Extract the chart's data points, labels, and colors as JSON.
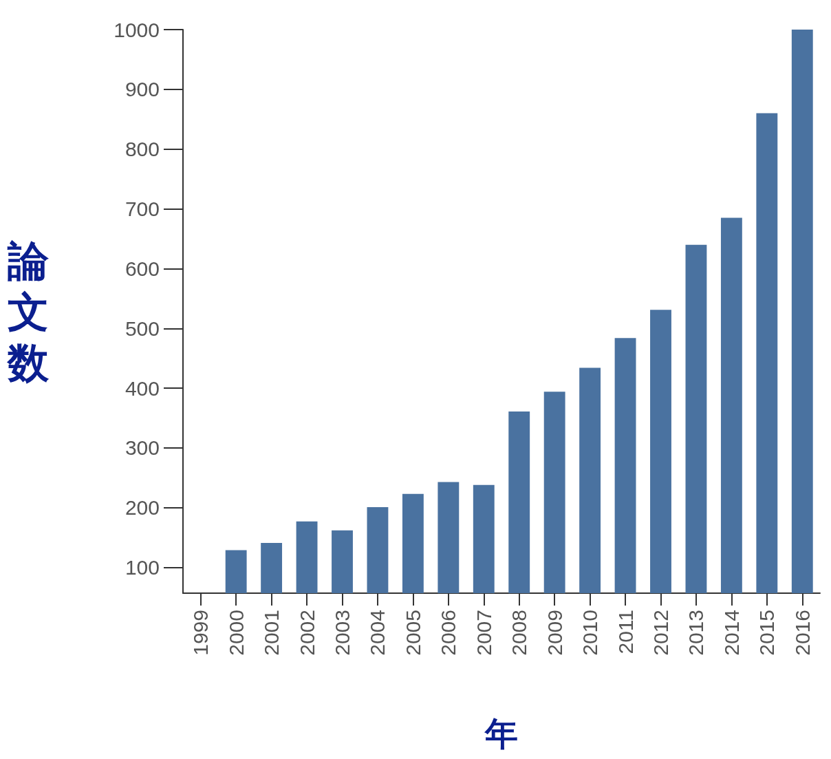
{
  "chart_data": {
    "type": "bar",
    "xlabel": "年",
    "ylabel": "論文数",
    "categories": [
      "1999",
      "2000",
      "2001",
      "2002",
      "2003",
      "2004",
      "2005",
      "2006",
      "2007",
      "2008",
      "2009",
      "2010",
      "2011",
      "2012",
      "2013",
      "2014",
      "2015",
      "2016"
    ],
    "values": [
      null,
      129,
      141,
      177,
      162,
      201,
      223,
      243,
      238,
      361,
      394,
      434,
      484,
      531,
      640,
      685,
      860,
      1000
    ],
    "color": "#4a72a0",
    "ylim": [
      57,
      1000
    ],
    "yticks": [
      100,
      200,
      300,
      400,
      500,
      600,
      700,
      800,
      900,
      1000
    ],
    "grid": false
  }
}
